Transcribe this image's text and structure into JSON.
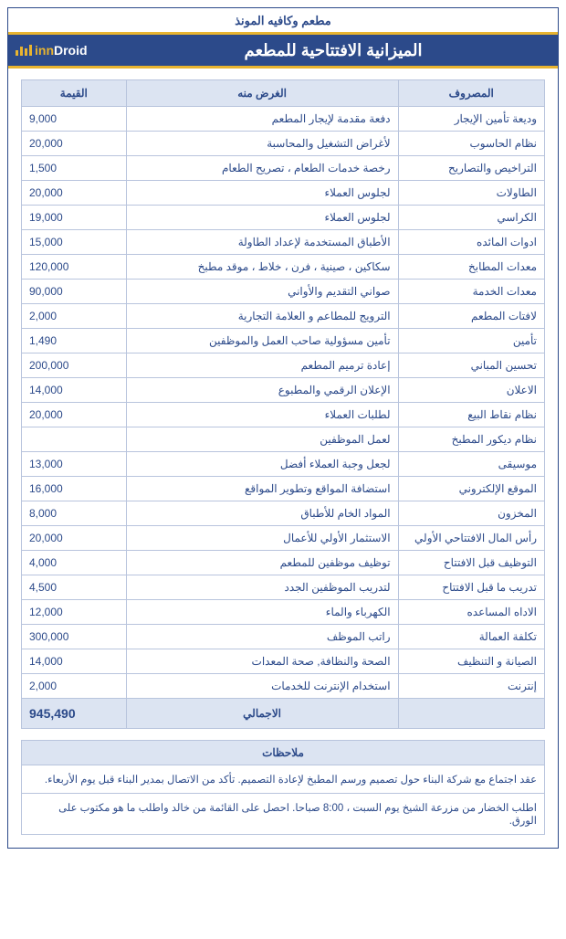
{
  "header": {
    "restaurant_name": "مطعم وكافيه المونذ",
    "report_title": "الميزانية الافتتاحية للمطعم",
    "logo_text_prefix": "inn",
    "logo_text_suffix": "Droid"
  },
  "colors": {
    "primary": "#2c4a8a",
    "accent": "#e8b430",
    "header_bg": "#dce4f2",
    "border": "#b8c4dd",
    "text": "#2c4a8a",
    "white": "#ffffff"
  },
  "table": {
    "columns": {
      "expense": "المصروف",
      "purpose": "الغرض منه",
      "value": "القيمة"
    },
    "rows": [
      {
        "expense": "وديعة تأمين الإيجار",
        "purpose": "دفعة مقدمة لإيجار المطعم",
        "value": "9,000"
      },
      {
        "expense": "نظام الحاسوب",
        "purpose": "لأغراض التشغيل والمحاسبة",
        "value": "20,000"
      },
      {
        "expense": "التراخيص والتصاريح",
        "purpose": "رخصة خدمات الطعام ، تصريح الطعام",
        "value": "1,500"
      },
      {
        "expense": "الطاولات",
        "purpose": "لجلوس العملاء",
        "value": "20,000"
      },
      {
        "expense": "الكراسي",
        "purpose": "لجلوس العملاء",
        "value": "19,000"
      },
      {
        "expense": "ادوات المائده",
        "purpose": "الأطباق المستخدمة لإعداد الطاولة",
        "value": "15,000"
      },
      {
        "expense": "معدات المطابخ",
        "purpose": "سكاكين ، صينية ، فرن ، خلاط ، موقد مطبخ",
        "value": "120,000"
      },
      {
        "expense": "معدات الخدمة",
        "purpose": "صواني التقديم والأواني",
        "value": "90,000"
      },
      {
        "expense": "لافتات المطعم",
        "purpose": "الترويج للمطاعم و العلامة التجارية",
        "value": "2,000"
      },
      {
        "expense": "تأمين",
        "purpose": "تأمين مسؤولية صاحب العمل والموظفين",
        "value": "1,490"
      },
      {
        "expense": "تحسين المباني",
        "purpose": "إعادة ترميم المطعم",
        "value": "200,000"
      },
      {
        "expense": "الاعلان",
        "purpose": "الإعلان الرقمي والمطبوع",
        "value": "14,000"
      },
      {
        "expense": "نظام نقاط البيع",
        "purpose": "لطلبات العملاء",
        "value": "20,000"
      },
      {
        "expense": "نظام ديكور المطبخ",
        "purpose": "لعمل الموظفين",
        "value": ""
      },
      {
        "expense": "موسيقى",
        "purpose": "لجعل وجبة العملاء أفضل",
        "value": "13,000"
      },
      {
        "expense": "الموقع الإلكتروني",
        "purpose": "استضافة المواقع وتطوير المواقع",
        "value": "16,000"
      },
      {
        "expense": "المخزون",
        "purpose": "المواد الخام للأطباق",
        "value": "8,000"
      },
      {
        "expense": "رأس المال الافتتاحي الأولي",
        "purpose": "الاستثمار الأولي للأعمال",
        "value": "20,000"
      },
      {
        "expense": "التوظيف قبل الافتتاح",
        "purpose": "توظيف موظفين للمطعم",
        "value": "4,000"
      },
      {
        "expense": "تدريب ما قبل الافتتاح",
        "purpose": "لتدريب الموظفين الجدد",
        "value": "4,500"
      },
      {
        "expense": "الاداه المساعده",
        "purpose": "الكهرباء والماء",
        "value": "12,000"
      },
      {
        "expense": "تكلفة العمالة",
        "purpose": "راتب الموظف",
        "value": "300,000"
      },
      {
        "expense": "الصيانة و التنظيف",
        "purpose": "الصحة والنظافة, صحة المعدات",
        "value": "14,000"
      },
      {
        "expense": "إنترنت",
        "purpose": "استخدام الإنترنت للخدمات",
        "value": "2,000"
      }
    ],
    "total": {
      "label": "الاجمالي",
      "value": "945,490"
    }
  },
  "notes": {
    "header": "ملاحظات",
    "items": [
      "عقد اجتماع مع شركة البناء حول تصميم ورسم المطبخ لإعادة التصميم. تأكد من الاتصال بمدير البناء قبل يوم الأربعاء.",
      "اطلب الخضار من مزرعة الشيخ  يوم السبت ، 8:00 صباحا. احصل على القائمة من خالد واطلب ما هو مكتوب على الورق."
    ]
  }
}
